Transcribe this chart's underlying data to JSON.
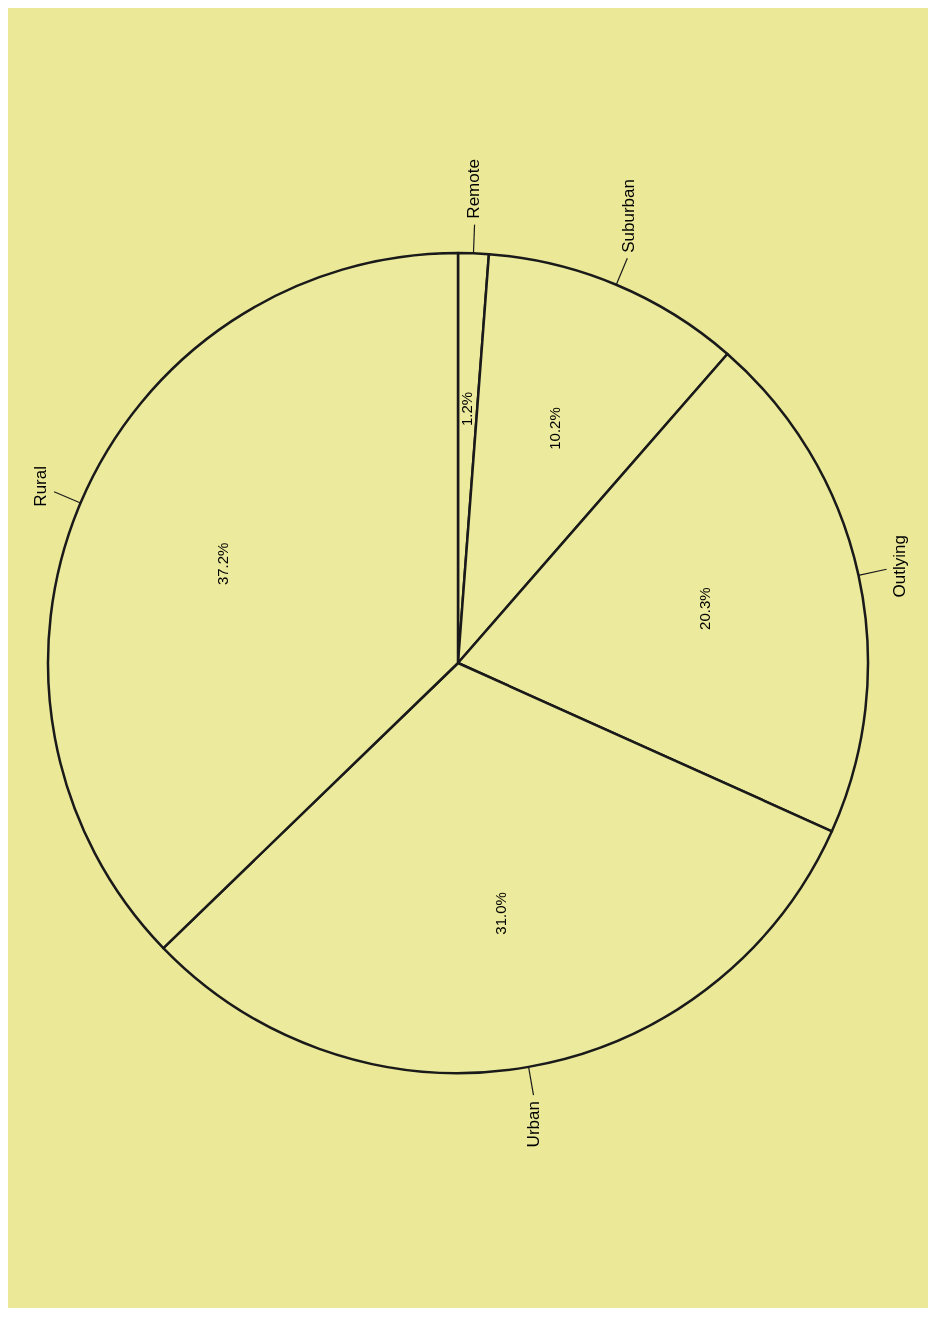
{
  "chart_data": {
    "type": "pie",
    "categories": [
      "Remote",
      "Suburban",
      "Outlying",
      "Urban",
      "Rural"
    ],
    "values": [
      1.2,
      10.2,
      20.3,
      31.0,
      37.2
    ],
    "value_labels": [
      "1.2%",
      "10.2%",
      "20.3%",
      "31.0%",
      "37.2%"
    ],
    "colors": [
      "#ecea9c",
      "#ecea9c",
      "#ecea9c",
      "#ecea9c",
      "#ecea9c"
    ]
  }
}
